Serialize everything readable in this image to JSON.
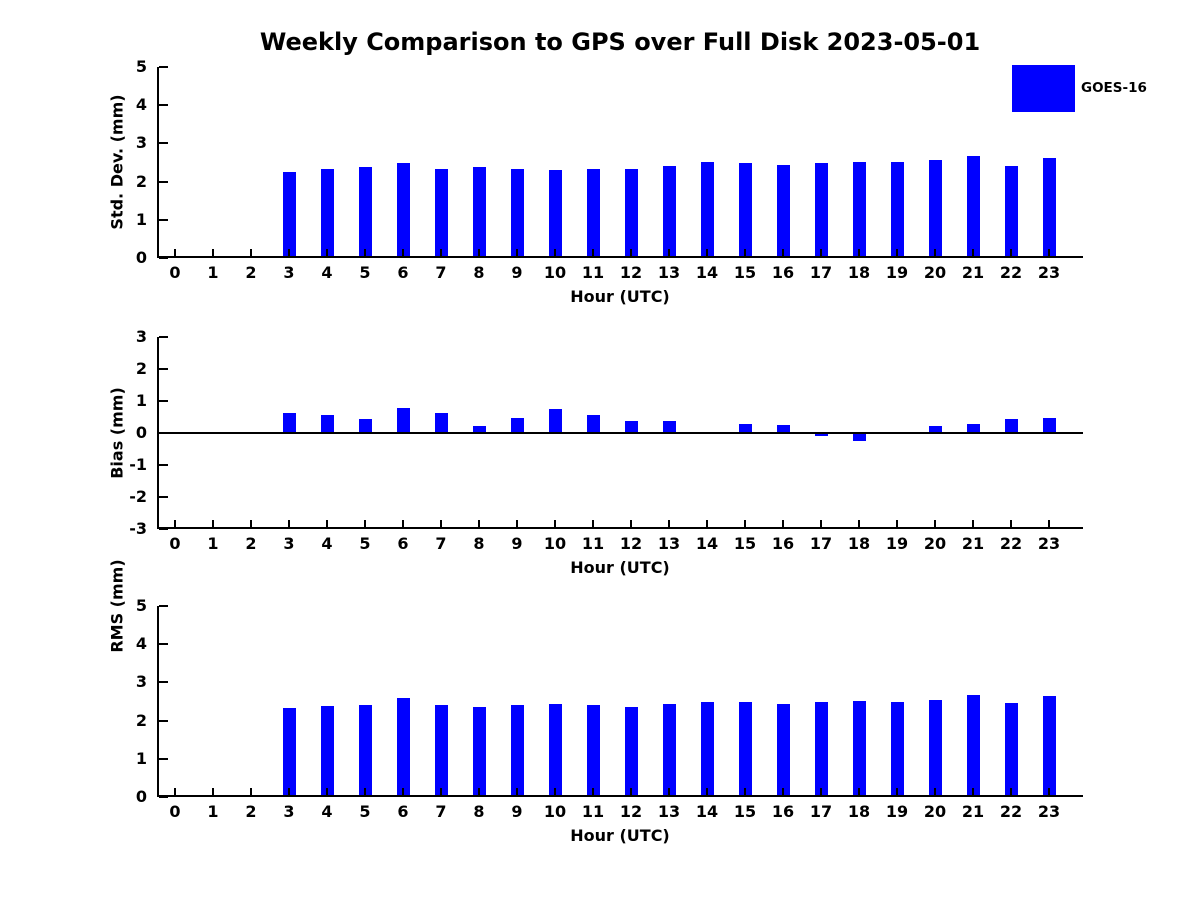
{
  "title": "Weekly Comparison to GPS over Full Disk 2023-05-01",
  "legend": {
    "label": "GOES-16",
    "color": "#0000FF",
    "location": "upper-right"
  },
  "chart_data": [
    {
      "type": "bar",
      "series_name": "GOES-16",
      "color": "#0000FF",
      "ylabel": "Std. Dev. (mm)",
      "xlabel": "Hour (UTC)",
      "ylim": [
        0,
        5
      ],
      "yticks": [
        0,
        1,
        2,
        3,
        4,
        5
      ],
      "x": [
        0,
        1,
        2,
        3,
        4,
        5,
        6,
        7,
        8,
        9,
        10,
        11,
        12,
        13,
        14,
        15,
        16,
        17,
        18,
        19,
        20,
        21,
        22,
        23
      ],
      "values": [
        null,
        null,
        null,
        2.24,
        2.34,
        2.37,
        2.48,
        2.32,
        2.38,
        2.34,
        2.31,
        2.34,
        2.33,
        2.41,
        2.51,
        2.48,
        2.43,
        2.49,
        2.51,
        2.51,
        2.56,
        2.67,
        2.41,
        2.61
      ],
      "grid": false
    },
    {
      "type": "bar",
      "series_name": "GOES-16",
      "color": "#0000FF",
      "ylabel": "Bias (mm)",
      "xlabel": "Hour (UTC)",
      "ylim": [
        -3,
        3
      ],
      "yticks": [
        3,
        2,
        1,
        0,
        -1,
        -2,
        -3
      ],
      "x": [
        0,
        1,
        2,
        3,
        4,
        5,
        6,
        7,
        8,
        9,
        10,
        11,
        12,
        13,
        14,
        15,
        16,
        17,
        18,
        19,
        20,
        21,
        22,
        23
      ],
      "values": [
        null,
        null,
        null,
        0.64,
        0.55,
        0.45,
        0.78,
        0.64,
        0.21,
        0.47,
        0.75,
        0.57,
        0.37,
        0.36,
        0.0,
        0.29,
        0.24,
        -0.1,
        -0.26,
        -0.02,
        0.21,
        0.27,
        0.45,
        0.48
      ],
      "grid": false
    },
    {
      "type": "bar",
      "series_name": "GOES-16",
      "color": "#0000FF",
      "ylabel": "RMS (mm)",
      "xlabel": "Hour (UTC)",
      "ylim": [
        0,
        5
      ],
      "yticks": [
        0,
        1,
        2,
        3,
        4,
        5
      ],
      "x": [
        0,
        1,
        2,
        3,
        4,
        5,
        6,
        7,
        8,
        9,
        10,
        11,
        12,
        13,
        14,
        15,
        16,
        17,
        18,
        19,
        20,
        21,
        22,
        23
      ],
      "values": [
        null,
        null,
        null,
        2.33,
        2.39,
        2.41,
        2.6,
        2.41,
        2.36,
        2.41,
        2.44,
        2.41,
        2.35,
        2.44,
        2.49,
        2.48,
        2.43,
        2.49,
        2.52,
        2.48,
        2.55,
        2.67,
        2.45,
        2.64
      ],
      "grid": false
    }
  ]
}
